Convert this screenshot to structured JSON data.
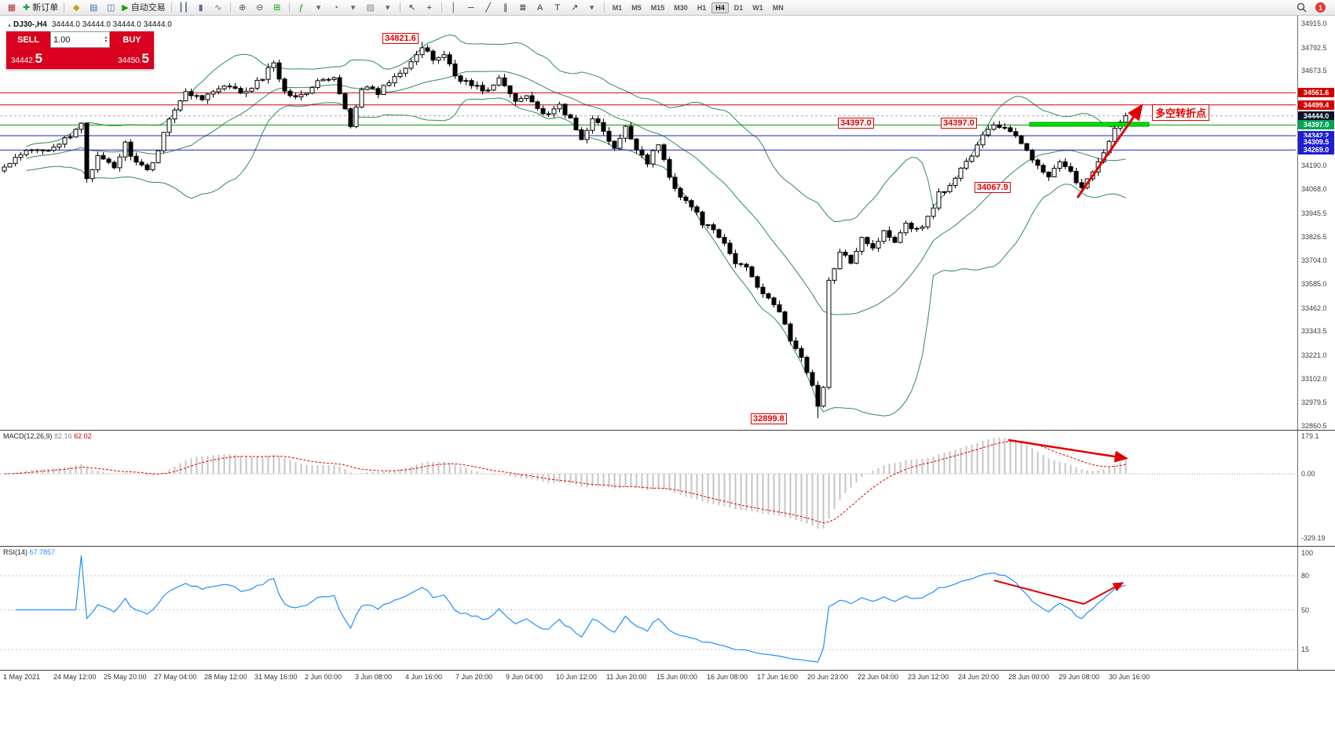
{
  "toolbar": {
    "badge": "1",
    "items": [
      {
        "name": "chart-window-icon",
        "glyph": "▦",
        "color": "#b03030"
      },
      {
        "name": "new-order-button",
        "glyph": "✚",
        "color": "#1a9e3f",
        "label": "新订单"
      },
      {
        "name": "sep"
      },
      {
        "name": "profile-icon",
        "glyph": "◆",
        "color": "#c8a015"
      },
      {
        "name": "market-watch-icon",
        "glyph": "▤",
        "color": "#3a6ea5"
      },
      {
        "name": "data-window-icon",
        "glyph": "◫",
        "color": "#3a6ea5"
      },
      {
        "name": "autotrading-button",
        "glyph": "▶",
        "color": "#13a10e",
        "label": "自动交易"
      },
      {
        "name": "sep"
      },
      {
        "name": "bar-chart-icon",
        "glyph": "┃┃",
        "color": "#607090"
      },
      {
        "name": "candle-chart-icon",
        "glyph": "▮",
        "color": "#607090"
      },
      {
        "name": "line-chart-icon",
        "glyph": "∿",
        "color": "#607090"
      },
      {
        "name": "sep"
      },
      {
        "name": "zoom-in-icon",
        "glyph": "⊕",
        "color": "#555555"
      },
      {
        "name": "zoom-out-icon",
        "glyph": "⊖",
        "color": "#555555"
      },
      {
        "name": "tile-windows-icon",
        "glyph": "⊞",
        "color": "#13a10e"
      },
      {
        "name": "sep"
      },
      {
        "name": "indicators-icon",
        "glyph": "ƒ",
        "color": "#13a10e"
      },
      {
        "name": "indicators-dropdown",
        "glyph": "▾",
        "color": "#666666"
      },
      {
        "name": "periods-icon",
        "glyph": "◔",
        "color": "#3a6ea5"
      },
      {
        "name": "periods-dropdown",
        "glyph": "▾",
        "color": "#666666"
      },
      {
        "name": "templates-icon",
        "glyph": "▧",
        "color": "#888888"
      },
      {
        "name": "templates-dropdown",
        "glyph": "▾",
        "color": "#666666"
      },
      {
        "name": "sep"
      },
      {
        "name": "cursor-icon",
        "glyph": "↖",
        "color": "#333333"
      },
      {
        "name": "crosshair-icon",
        "glyph": "+",
        "color": "#333333"
      },
      {
        "name": "sep"
      },
      {
        "name": "vertical-line-icon",
        "glyph": "│",
        "color": "#333333"
      },
      {
        "name": "horizontal-line-icon",
        "glyph": "─",
        "color": "#333333"
      },
      {
        "name": "trendline-icon",
        "glyph": "╱",
        "color": "#333333"
      },
      {
        "name": "channel-icon",
        "glyph": "∥",
        "color": "#333333"
      },
      {
        "name": "fibonacci-icon",
        "glyph": "≣",
        "color": "#333333"
      },
      {
        "name": "text-icon",
        "glyph": "A",
        "color": "#333333"
      },
      {
        "name": "label-icon",
        "glyph": "T",
        "color": "#333333"
      },
      {
        "name": "shapes-icon",
        "glyph": "↗",
        "color": "#333333"
      },
      {
        "name": "shapes-dropdown",
        "glyph": "▾",
        "color": "#666666"
      },
      {
        "name": "sep"
      }
    ],
    "timeframes": [
      "M1",
      "M5",
      "M15",
      "M30",
      "H1",
      "H4",
      "D1",
      "W1",
      "MN"
    ],
    "active_timeframe": "H4"
  },
  "chart": {
    "symbol": "DJ30-,H4",
    "ohlc": "34444.0 34444.0 34444.0 34444.0",
    "annotations": {
      "text": "多空转折点"
    },
    "price_callouts": [
      {
        "id": "high",
        "text": "34821.6"
      },
      {
        "id": "level-left",
        "text": "34397.0"
      },
      {
        "id": "level-right",
        "text": "34397.0"
      },
      {
        "id": "swing-low",
        "text": "34067.9"
      },
      {
        "id": "low",
        "text": "32899.8"
      }
    ],
    "hlines": [
      {
        "price": 34561.6,
        "color": "#cc0000",
        "dashed": false
      },
      {
        "price": 34499.4,
        "color": "#cc0000",
        "dashed": false
      },
      {
        "price": 34397.0,
        "color": "#009900",
        "dashed": false
      },
      {
        "price": 34342.2,
        "color": "#2020c0",
        "dashed": false
      },
      {
        "price": 34269.0,
        "color": "#2020c0",
        "dashed": false
      },
      {
        "price": 34444.0,
        "color": "#aaaaaa",
        "dashed": true
      }
    ],
    "price_axis": {
      "normal": [
        34915.0,
        34792.5,
        34673.5,
        34190.0,
        34068.0,
        33945.5,
        33826.5,
        33704.0,
        33585.0,
        33462.0,
        33343.5,
        33221.0,
        33102.0,
        32979.5,
        32860.5
      ],
      "tags": [
        {
          "value": "34561.6",
          "price": 34561.6,
          "type": "red"
        },
        {
          "value": "34499.4",
          "price": 34499.4,
          "type": "red"
        },
        {
          "value": "34444.0",
          "price": 34444.0,
          "type": "current"
        },
        {
          "value": "34397.0",
          "price": 34397.0,
          "type": "green"
        },
        {
          "value": "34342.2",
          "price": 34342.2,
          "type": "blue"
        },
        {
          "value": "34309.5",
          "price": 34309.5,
          "type": "blue"
        },
        {
          "value": "34269.0",
          "price": 34269.0,
          "type": "blue"
        }
      ]
    },
    "macd_axis": [
      "179.1",
      "0.00",
      "-329.19"
    ],
    "rsi_axis": [
      100,
      80,
      50,
      15
    ],
    "time_axis": [
      "1 May 2021",
      "24 May 12:00",
      "25 May 20:00",
      "27 May 04:00",
      "28 May 12:00",
      "31 May 16:00",
      "2 Jun 00:00",
      "3 Jun 08:00",
      "4 Jun 16:00",
      "7 Jun 20:00",
      "9 Jun 04:00",
      "10 Jun 12:00",
      "11 Jun 20:00",
      "15 Jun 00:00",
      "16 Jun 08:00",
      "17 Jun 16:00",
      "20 Jun 23:00",
      "22 Jun 04:00",
      "23 Jun 12:00",
      "24 Jun 20:00",
      "28 Jun 00:00",
      "29 Jun 08:00",
      "30 Jun 16:00"
    ]
  },
  "trade_panel": {
    "sell_label": "SELL",
    "buy_label": "BUY",
    "volume": "1.00",
    "sell_price_main": "34442.",
    "sell_price_big": "5",
    "buy_price_main": "34450.",
    "buy_price_big": "5"
  },
  "indicators": {
    "macd": {
      "label": "MACD(12,26,9)",
      "value1": "82.16",
      "value2": "62.02"
    },
    "rsi": {
      "label": "RSI(14)",
      "value1": "67.7857"
    }
  },
  "chart_data": {
    "type": "candlestick",
    "symbol": "DJ30-",
    "timeframe": "H4",
    "price_range": [
      32860.5,
      34915.0
    ],
    "current_ohlc": {
      "open": 34444.0,
      "high": 34444.0,
      "low": 34444.0,
      "close": 34444.0
    },
    "key_prices": {
      "period_high": 34821.6,
      "period_low": 32899.8,
      "swing_low": 34067.9,
      "level": 34397.0,
      "current": 34444.0,
      "bid": 34442.5,
      "ask": 34450.5,
      "resistance": [
        34561.6,
        34499.4
      ],
      "support": [
        34342.2,
        34309.5,
        34269.0
      ]
    },
    "indicator_settings": {
      "bollinger_period": 20,
      "bollinger_dev": 2,
      "macd": [
        12,
        26,
        9
      ],
      "macd_values": [
        82.16,
        62.02
      ],
      "macd_scale": [
        179.1,
        -329.19
      ],
      "rsi_period": 14,
      "rsi_value": 67.7857
    },
    "close_anchors": [
      [
        0,
        34180
      ],
      [
        4,
        34260
      ],
      [
        8,
        34280
      ],
      [
        12,
        34330
      ],
      [
        14,
        34410
      ],
      [
        15,
        34130
      ],
      [
        17,
        34230
      ],
      [
        20,
        34180
      ],
      [
        22,
        34300
      ],
      [
        24,
        34200
      ],
      [
        26,
        34160
      ],
      [
        28,
        34270
      ],
      [
        30,
        34440
      ],
      [
        33,
        34560
      ],
      [
        36,
        34540
      ],
      [
        40,
        34590
      ],
      [
        44,
        34560
      ],
      [
        47,
        34640
      ],
      [
        49,
        34720
      ],
      [
        51,
        34570
      ],
      [
        54,
        34540
      ],
      [
        57,
        34620
      ],
      [
        60,
        34630
      ],
      [
        63,
        34400
      ],
      [
        65,
        34590
      ],
      [
        68,
        34560
      ],
      [
        70,
        34620
      ],
      [
        73,
        34700
      ],
      [
        76,
        34790
      ],
      [
        78,
        34730
      ],
      [
        80,
        34760
      ],
      [
        82,
        34650
      ],
      [
        85,
        34600
      ],
      [
        88,
        34570
      ],
      [
        90,
        34630
      ],
      [
        93,
        34520
      ],
      [
        95,
        34560
      ],
      [
        97,
        34480
      ],
      [
        99,
        34440
      ],
      [
        101,
        34500
      ],
      [
        103,
        34420
      ],
      [
        105,
        34320
      ],
      [
        107,
        34440
      ],
      [
        109,
        34360
      ],
      [
        111,
        34270
      ],
      [
        113,
        34380
      ],
      [
        115,
        34280
      ],
      [
        117,
        34210
      ],
      [
        119,
        34300
      ],
      [
        121,
        34130
      ],
      [
        123,
        34040
      ],
      [
        125,
        33980
      ],
      [
        127,
        33900
      ],
      [
        129,
        33850
      ],
      [
        131,
        33790
      ],
      [
        133,
        33690
      ],
      [
        135,
        33680
      ],
      [
        137,
        33580
      ],
      [
        139,
        33500
      ],
      [
        141,
        33450
      ],
      [
        143,
        33300
      ],
      [
        145,
        33200
      ],
      [
        147,
        33080
      ],
      [
        148,
        32960
      ],
      [
        149,
        33050
      ],
      [
        150,
        33600
      ],
      [
        152,
        33740
      ],
      [
        154,
        33700
      ],
      [
        156,
        33830
      ],
      [
        158,
        33770
      ],
      [
        160,
        33850
      ],
      [
        162,
        33810
      ],
      [
        164,
        33900
      ],
      [
        166,
        33860
      ],
      [
        168,
        33920
      ],
      [
        170,
        34050
      ],
      [
        172,
        34080
      ],
      [
        174,
        34180
      ],
      [
        176,
        34240
      ],
      [
        178,
        34340
      ],
      [
        180,
        34400
      ],
      [
        182,
        34380
      ],
      [
        184,
        34330
      ],
      [
        186,
        34280
      ],
      [
        188,
        34180
      ],
      [
        190,
        34130
      ],
      [
        192,
        34200
      ],
      [
        194,
        34150
      ],
      [
        196,
        34080
      ],
      [
        198,
        34170
      ],
      [
        200,
        34250
      ],
      [
        202,
        34370
      ],
      [
        204,
        34444
      ]
    ]
  }
}
